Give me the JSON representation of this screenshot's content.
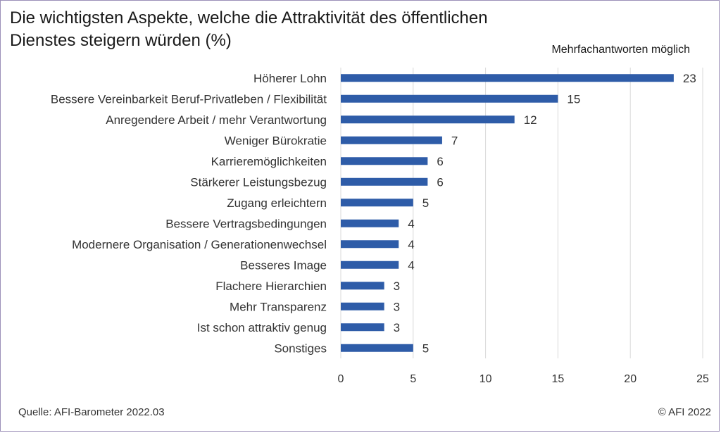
{
  "title": "Die wichtigsten Aspekte, welche die Attraktivität des öffentlichen\nDienstes steigern würden  (%)",
  "note": "Mehrfachantworten  möglich",
  "source": "Quelle: AFI-Barometer 2022.03",
  "copyright": "© AFI 2022",
  "colors": {
    "bar": "#2e5ca8",
    "grid": "#d9d9d9"
  },
  "chart_data": {
    "type": "bar",
    "orientation": "horizontal",
    "title": "Die wichtigsten Aspekte, welche die Attraktivität des öffentlichen Dienstes steigern würden  (%)",
    "categories": [
      "Höherer Lohn",
      "Bessere Vereinbarkeit Beruf-Privatleben / Flexibilität",
      "Anregendere Arbeit / mehr Verantwortung",
      "Weniger Bürokratie",
      "Karrieremöglichkeiten",
      "Stärkerer Leistungsbezug",
      "Zugang erleichtern",
      "Bessere Vertragsbedingungen",
      "Modernere Organisation / Generationenwechsel",
      "Besseres Image",
      "Flachere Hierarchien",
      "Mehr Transparenz",
      "Ist schon attraktiv genug",
      "Sonstiges"
    ],
    "values": [
      23,
      15,
      12,
      7,
      6,
      6,
      5,
      4,
      4,
      4,
      3,
      3,
      3,
      5
    ],
    "xlim": [
      0,
      25
    ],
    "xticks": [
      0,
      5,
      10,
      15,
      20,
      25
    ],
    "grid": "vertical",
    "legend": "none"
  }
}
